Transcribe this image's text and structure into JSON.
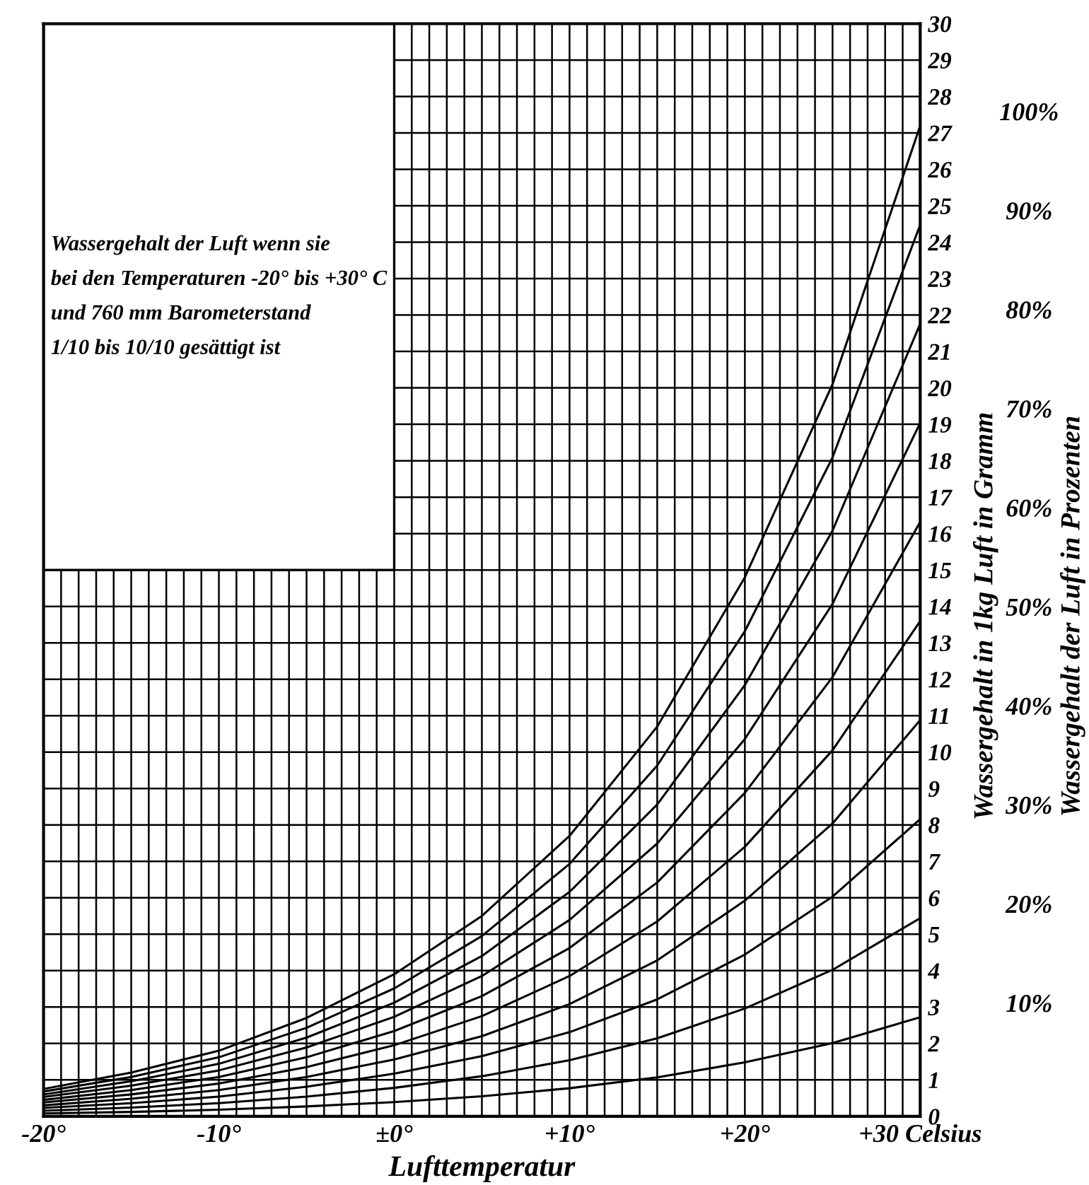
{
  "chart_data": {
    "type": "line",
    "title": "Wassergehalt der Luft wenn sie\nbei den Temperaturen -20° bis +30° C\nund 760 mm Barometerstand\n1/10 bis 10/10 gesättigt ist",
    "xlabel": "Lufttemperatur",
    "ylabel": "Wassergehalt in 1kg Luft in Gramm",
    "y2label": "Wassergehalt der Luft in Prozenten",
    "x": [
      -20,
      -15,
      -10,
      -5,
      0,
      5,
      10,
      15,
      20,
      25,
      30
    ],
    "series": [
      {
        "name": "10%",
        "color": "#000000",
        "values": [
          0.08,
          0.12,
          0.18,
          0.27,
          0.39,
          0.55,
          0.77,
          1.07,
          1.48,
          2.01,
          2.72
        ]
      },
      {
        "name": "20%",
        "color": "#000000",
        "values": [
          0.15,
          0.24,
          0.36,
          0.54,
          0.78,
          1.1,
          1.54,
          2.14,
          2.96,
          4.02,
          5.44
        ]
      },
      {
        "name": "30%",
        "color": "#000000",
        "values": [
          0.23,
          0.36,
          0.54,
          0.81,
          1.17,
          1.65,
          2.31,
          3.21,
          4.44,
          6.03,
          8.16
        ]
      },
      {
        "name": "40%",
        "color": "#000000",
        "values": [
          0.3,
          0.48,
          0.72,
          1.08,
          1.56,
          2.2,
          3.08,
          4.28,
          5.92,
          8.04,
          10.88
        ]
      },
      {
        "name": "50%",
        "color": "#000000",
        "values": [
          0.38,
          0.6,
          0.9,
          1.35,
          1.95,
          2.75,
          3.85,
          5.35,
          7.4,
          10.05,
          13.6
        ]
      },
      {
        "name": "60%",
        "color": "#000000",
        "values": [
          0.45,
          0.72,
          1.08,
          1.62,
          2.34,
          3.3,
          4.62,
          6.42,
          8.88,
          12.06,
          16.32
        ]
      },
      {
        "name": "70%",
        "color": "#000000",
        "values": [
          0.53,
          0.84,
          1.26,
          1.89,
          2.73,
          3.85,
          5.39,
          7.49,
          10.36,
          14.07,
          19.04
        ]
      },
      {
        "name": "80%",
        "color": "#000000",
        "values": [
          0.6,
          0.96,
          1.44,
          2.16,
          3.12,
          4.4,
          6.16,
          8.56,
          11.84,
          16.08,
          21.76
        ]
      },
      {
        "name": "90%",
        "color": "#000000",
        "values": [
          0.68,
          1.08,
          1.62,
          2.43,
          3.51,
          4.95,
          6.93,
          9.63,
          13.32,
          18.09,
          24.48
        ]
      },
      {
        "name": "100%",
        "color": "#000000",
        "values": [
          0.75,
          1.2,
          1.8,
          2.7,
          3.9,
          5.5,
          7.7,
          10.7,
          14.8,
          20.1,
          27.2
        ]
      }
    ],
    "xlim": [
      -20,
      30
    ],
    "ylim": [
      0,
      30
    ],
    "xticks": [
      {
        "value": -20,
        "label": "-20°"
      },
      {
        "value": -19,
        "label": null
      },
      {
        "value": -18,
        "label": null
      },
      {
        "value": -17,
        "label": null
      },
      {
        "value": -16,
        "label": null
      },
      {
        "value": -15,
        "label": null
      },
      {
        "value": -14,
        "label": null
      },
      {
        "value": -13,
        "label": null
      },
      {
        "value": -12,
        "label": null
      },
      {
        "value": -11,
        "label": null
      },
      {
        "value": -10,
        "label": "-10°"
      },
      {
        "value": -9,
        "label": null
      },
      {
        "value": -8,
        "label": null
      },
      {
        "value": -7,
        "label": null
      },
      {
        "value": -6,
        "label": null
      },
      {
        "value": -5,
        "label": null
      },
      {
        "value": -4,
        "label": null
      },
      {
        "value": -3,
        "label": null
      },
      {
        "value": -2,
        "label": null
      },
      {
        "value": -1,
        "label": null
      },
      {
        "value": 0,
        "label": "±0°"
      },
      {
        "value": 1,
        "label": null
      },
      {
        "value": 2,
        "label": null
      },
      {
        "value": 3,
        "label": null
      },
      {
        "value": 4,
        "label": null
      },
      {
        "value": 5,
        "label": null
      },
      {
        "value": 6,
        "label": null
      },
      {
        "value": 7,
        "label": null
      },
      {
        "value": 8,
        "label": null
      },
      {
        "value": 9,
        "label": null
      },
      {
        "value": 10,
        "label": "+10°"
      },
      {
        "value": 11,
        "label": null
      },
      {
        "value": 12,
        "label": null
      },
      {
        "value": 13,
        "label": null
      },
      {
        "value": 14,
        "label": null
      },
      {
        "value": 15,
        "label": null
      },
      {
        "value": 16,
        "label": null
      },
      {
        "value": 17,
        "label": null
      },
      {
        "value": 18,
        "label": null
      },
      {
        "value": 19,
        "label": null
      },
      {
        "value": 20,
        "label": "+20°"
      },
      {
        "value": 21,
        "label": null
      },
      {
        "value": 22,
        "label": null
      },
      {
        "value": 23,
        "label": null
      },
      {
        "value": 24,
        "label": null
      },
      {
        "value": 25,
        "label": null
      },
      {
        "value": 26,
        "label": null
      },
      {
        "value": 27,
        "label": null
      },
      {
        "value": 28,
        "label": null
      },
      {
        "value": 29,
        "label": null
      },
      {
        "value": 30,
        "label": "+30 Celsius"
      }
    ],
    "yticks": [
      0,
      1,
      2,
      3,
      4,
      5,
      6,
      7,
      8,
      9,
      10,
      11,
      12,
      13,
      14,
      15,
      16,
      17,
      18,
      19,
      20,
      21,
      22,
      23,
      24,
      25,
      26,
      27,
      28,
      29,
      30
    ],
    "grid": true,
    "marker": "none",
    "line_style": "solid"
  }
}
